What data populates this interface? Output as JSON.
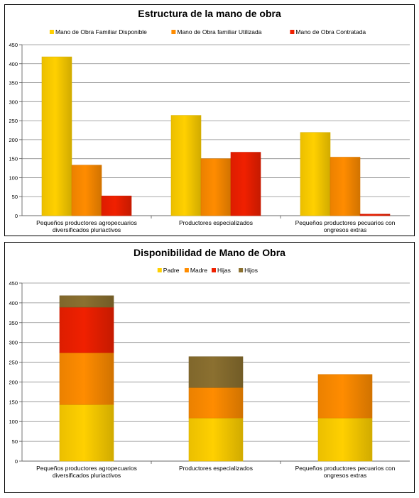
{
  "chart_data": [
    {
      "type": "bar",
      "title": "Estructura de la mano de obra",
      "categories": [
        [
          "Pequeños productores agropecuarios",
          "diversificados pluriactivos"
        ],
        [
          "Productores especializados"
        ],
        [
          "Pequeños productores pecuarios con",
          "ongresos extras"
        ]
      ],
      "series": [
        {
          "name": "Mano de Obra Familiar Disponible",
          "values": [
            418,
            264,
            219
          ],
          "color": "#FFD000"
        },
        {
          "name": "Mano de Obra familiar Utilizada",
          "values": [
            133,
            150,
            154
          ],
          "color": "#FF8C00"
        },
        {
          "name": "Mano de Obra Contratada",
          "values": [
            52,
            167,
            4
          ],
          "color": "#F02000"
        }
      ],
      "ylim": [
        0,
        450
      ],
      "yticks": [
        0,
        50,
        100,
        150,
        200,
        250,
        300,
        350,
        400,
        450
      ],
      "grid": true,
      "legend": "top"
    },
    {
      "type": "bar",
      "stacked": true,
      "title": "Disponibilidad de Mano de Obra",
      "categories": [
        [
          "Pequeños productores agropecuarios",
          "diversificados pluriactivos"
        ],
        [
          "Productores especializados"
        ],
        [
          "Pequeños productores pecuarios con",
          "ongresos extras"
        ]
      ],
      "series": [
        {
          "name": "Padre",
          "values": [
            143,
            109,
            109
          ],
          "color": "#FFD000"
        },
        {
          "name": "Madre",
          "values": [
            131,
            77,
            110
          ],
          "color": "#FF8C00"
        },
        {
          "name": "Hijas",
          "values": [
            115,
            0,
            0
          ],
          "color": "#F02000"
        },
        {
          "name": "Hijos",
          "values": [
            29,
            78,
            0
          ],
          "color": "#8B7030"
        }
      ],
      "ylim": [
        0,
        450
      ],
      "yticks": [
        0,
        50,
        100,
        150,
        200,
        250,
        300,
        350,
        400,
        450
      ],
      "grid": true,
      "legend": "top"
    }
  ]
}
